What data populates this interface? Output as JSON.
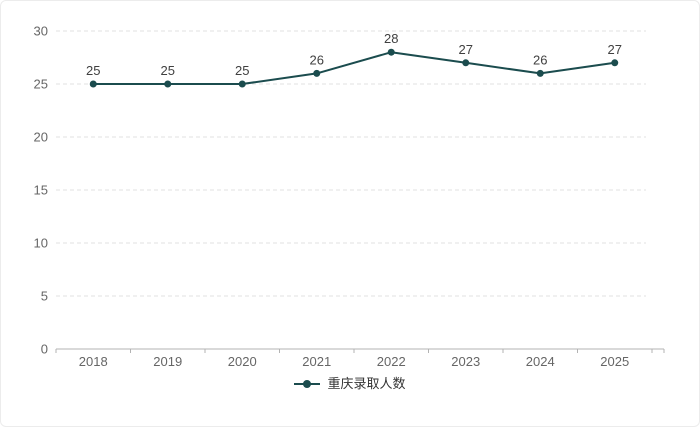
{
  "chart_data": {
    "type": "line",
    "categories": [
      "2018",
      "2019",
      "2020",
      "2021",
      "2022",
      "2023",
      "2024",
      "2025"
    ],
    "series": [
      {
        "name": "重庆录取人数",
        "values": [
          25,
          25,
          25,
          26,
          28,
          27,
          26,
          27
        ],
        "color": "#1b4c4e"
      }
    ],
    "title": "",
    "xlabel": "",
    "ylabel": "",
    "ylim": [
      0,
      30
    ],
    "ytick_interval": 5,
    "yticks": [
      0,
      5,
      10,
      15,
      20,
      25,
      30
    ],
    "grid": "horizontal-dashed",
    "show_point_labels": true,
    "legend_position": "bottom",
    "colors": {
      "line": "#1b4c4e",
      "point": "#1b4c4e",
      "point_label": "#404040",
      "axis_text": "#666666",
      "grid_line": "#e2e2e2",
      "axis_line": "#b3b3b3",
      "background": "#ffffff",
      "card_border": "#ececec"
    }
  }
}
